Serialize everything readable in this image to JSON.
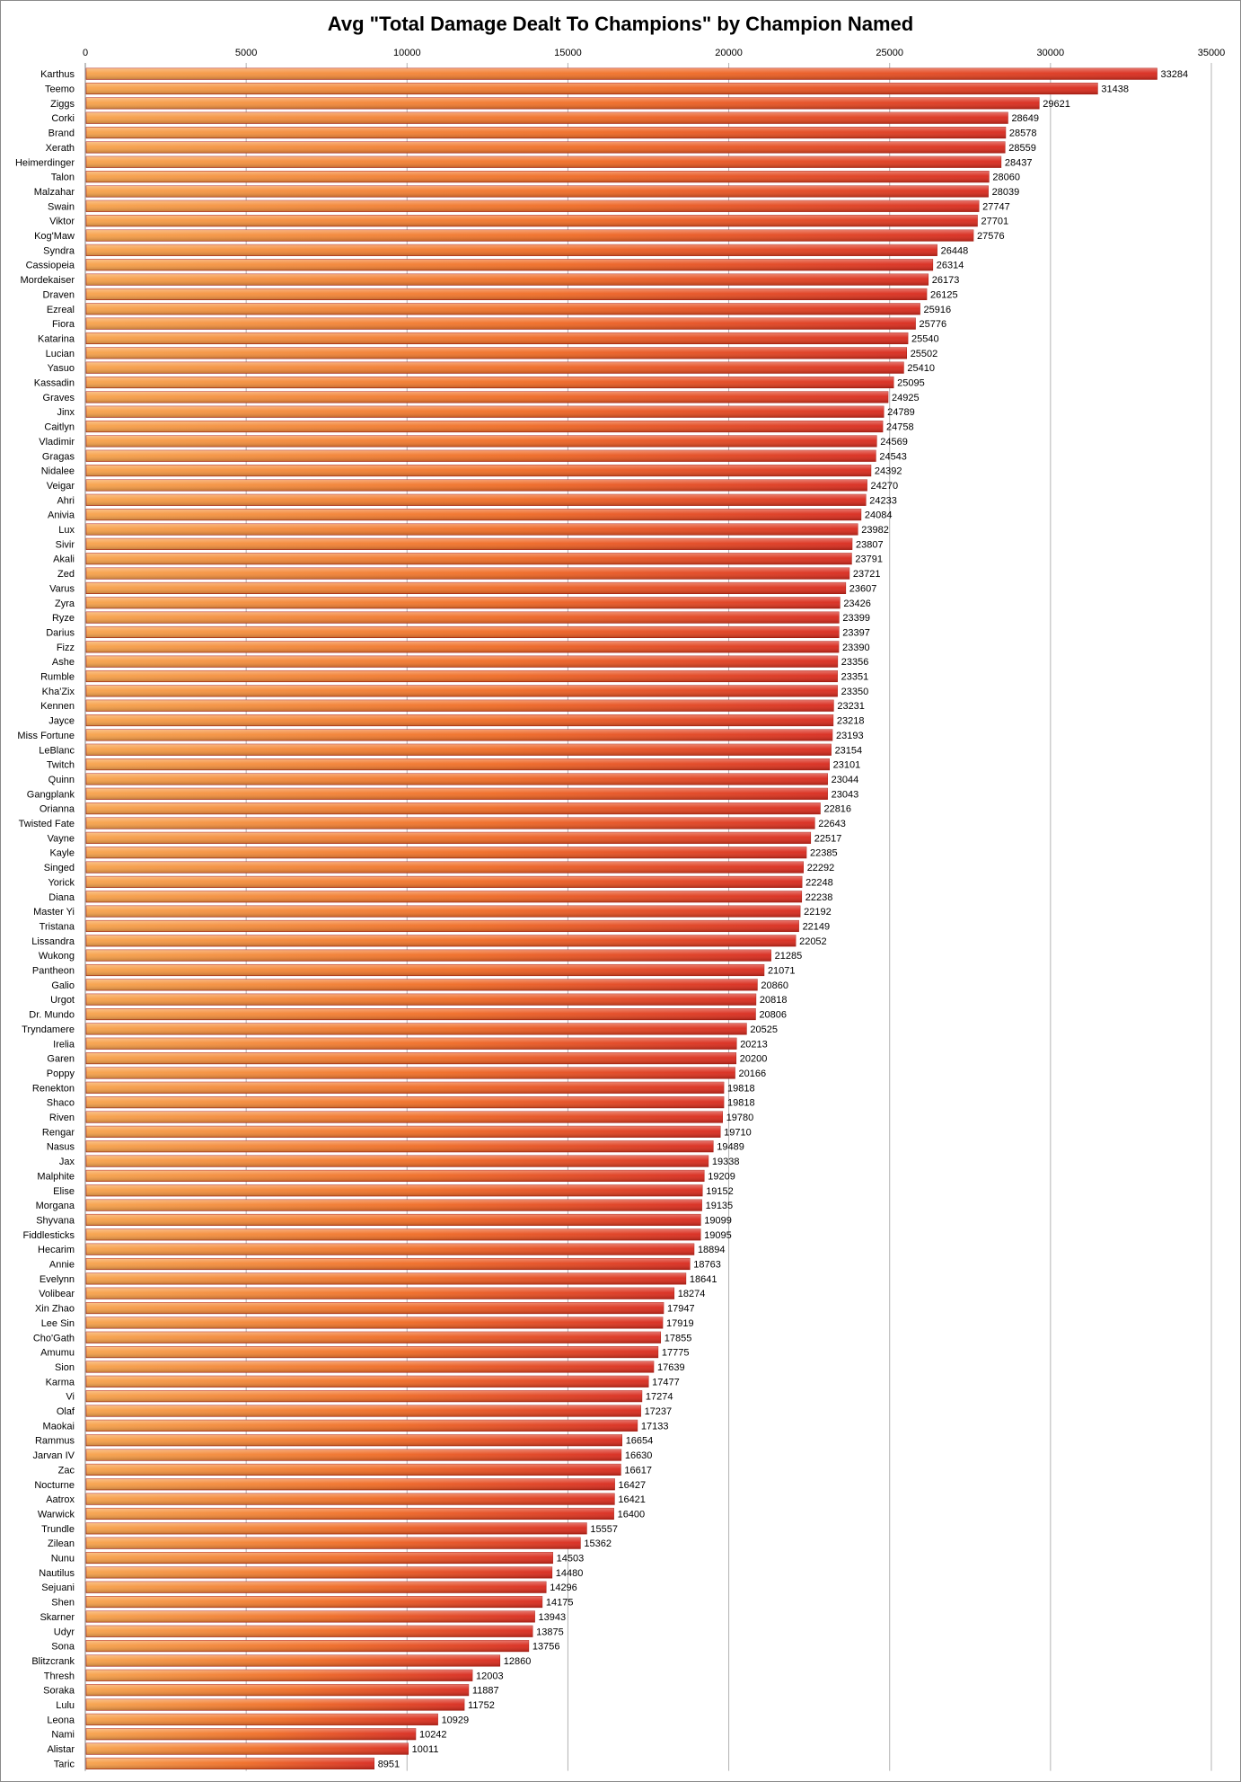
{
  "chart_data": {
    "type": "bar",
    "orientation": "horizontal",
    "title": "Avg \"Total Damage Dealt To Champions\" by Champion Named",
    "xlabel": "",
    "ylabel": "",
    "xlim": [
      0,
      35000
    ],
    "ticks": [
      "0",
      "5000",
      "10000",
      "15000",
      "20000",
      "25000",
      "30000",
      "35000"
    ],
    "tick_values": [
      0,
      5000,
      10000,
      15000,
      20000,
      25000,
      30000,
      35000
    ],
    "grid": true,
    "legend": "none",
    "colors": {
      "bar_start": "#f7a24a",
      "bar_mid": "#f06a23",
      "bar_end": "#d8281c",
      "bar_shade": "#b01a10",
      "grid": "#b3b3b3",
      "border": "#8a8a8a"
    },
    "categories": [
      "Karthus",
      "Teemo",
      "Ziggs",
      "Corki",
      "Brand",
      "Xerath",
      "Heimerdinger",
      "Talon",
      "Malzahar",
      "Swain",
      "Viktor",
      "Kog'Maw",
      "Syndra",
      "Cassiopeia",
      "Mordekaiser",
      "Draven",
      "Ezreal",
      "Fiora",
      "Katarina",
      "Lucian",
      "Yasuo",
      "Kassadin",
      "Graves",
      "Jinx",
      "Caitlyn",
      "Vladimir",
      "Gragas",
      "Nidalee",
      "Veigar",
      "Ahri",
      "Anivia",
      "Lux",
      "Sivir",
      "Akali",
      "Zed",
      "Varus",
      "Zyra",
      "Ryze",
      "Darius",
      "Fizz",
      "Ashe",
      "Rumble",
      "Kha'Zix",
      "Kennen",
      "Jayce",
      "Miss Fortune",
      "LeBlanc",
      "Twitch",
      "Quinn",
      "Gangplank",
      "Orianna",
      "Twisted Fate",
      "Vayne",
      "Kayle",
      "Singed",
      "Yorick",
      "Diana",
      "Master Yi",
      "Tristana",
      "Lissandra",
      "Wukong",
      "Pantheon",
      "Galio",
      "Urgot",
      "Dr. Mundo",
      "Tryndamere",
      "Irelia",
      "Garen",
      "Poppy",
      "Renekton",
      "Shaco",
      "Riven",
      "Rengar",
      "Nasus",
      "Jax",
      "Malphite",
      "Elise",
      "Morgana",
      "Shyvana",
      "Fiddlesticks",
      "Hecarim",
      "Annie",
      "Evelynn",
      "Volibear",
      "Xin Zhao",
      "Lee Sin",
      "Cho'Gath",
      "Amumu",
      "Sion",
      "Karma",
      "Vi",
      "Olaf",
      "Maokai",
      "Rammus",
      "Jarvan IV",
      "Zac",
      "Nocturne",
      "Aatrox",
      "Warwick",
      "Trundle",
      "Zilean",
      "Nunu",
      "Nautilus",
      "Sejuani",
      "Shen",
      "Skarner",
      "Udyr",
      "Sona",
      "Blitzcrank",
      "Thresh",
      "Soraka",
      "Lulu",
      "Leona",
      "Nami",
      "Alistar",
      "Taric"
    ],
    "values": [
      33284,
      31438,
      29621,
      28649,
      28578,
      28559,
      28437,
      28060,
      28039,
      27747,
      27701,
      27576,
      26448,
      26314,
      26173,
      26125,
      25916,
      25776,
      25540,
      25502,
      25410,
      25095,
      24925,
      24789,
      24758,
      24569,
      24543,
      24392,
      24270,
      24233,
      24084,
      23982,
      23807,
      23791,
      23721,
      23607,
      23426,
      23399,
      23397,
      23390,
      23356,
      23351,
      23350,
      23231,
      23218,
      23193,
      23154,
      23101,
      23044,
      23043,
      22816,
      22643,
      22517,
      22385,
      22292,
      22248,
      22238,
      22192,
      22149,
      22052,
      21285,
      21071,
      20860,
      20818,
      20806,
      20525,
      20213,
      20200,
      20166,
      19818,
      19818,
      19780,
      19710,
      19489,
      19338,
      19209,
      19152,
      19135,
      19099,
      19095,
      18894,
      18763,
      18641,
      18274,
      17947,
      17919,
      17855,
      17775,
      17639,
      17477,
      17274,
      17237,
      17133,
      16654,
      16630,
      16617,
      16427,
      16421,
      16400,
      15557,
      15362,
      14503,
      14480,
      14296,
      14175,
      13943,
      13875,
      13756,
      12860,
      12003,
      11887,
      11752,
      10929,
      10242,
      10011,
      8951
    ]
  }
}
